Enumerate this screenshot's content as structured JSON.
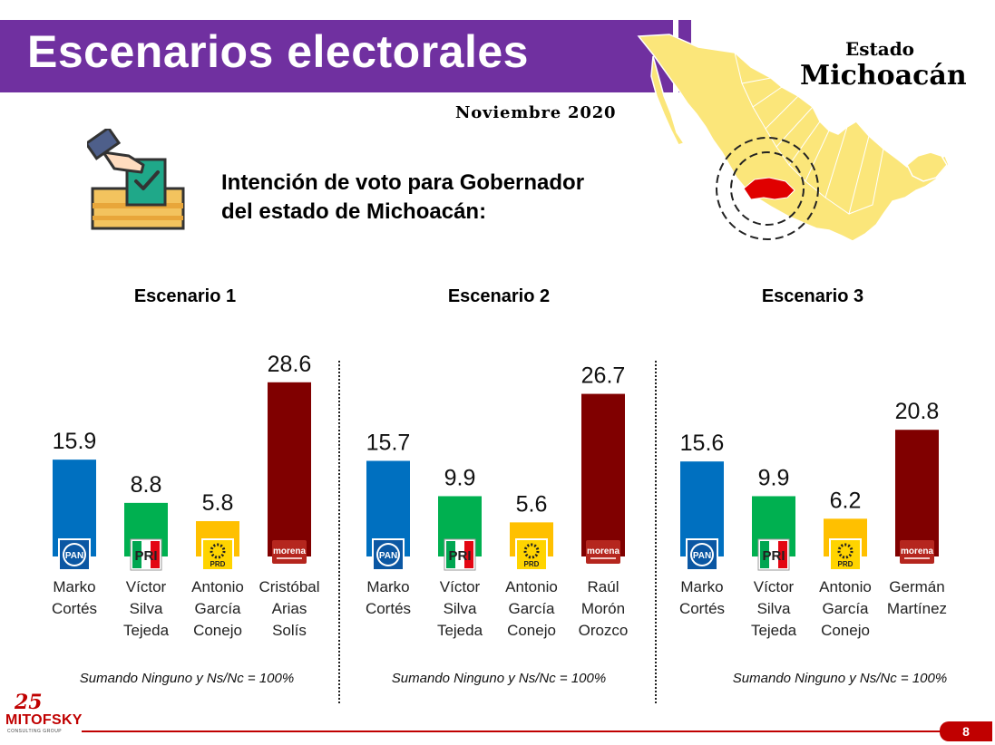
{
  "header": {
    "title": "Escenarios electorales",
    "date": "Noviembre 2020",
    "state_label": "Estado",
    "state_name": "Michoacán"
  },
  "question": {
    "line1": "Intención de voto para Gobernador",
    "line2": "del estado de Michoacán:"
  },
  "colors": {
    "purple": "#7030a0",
    "PAN": "#0070c0",
    "PRI": "#00b050",
    "PRD": "#ffc000",
    "MORENA": "#800000",
    "map_fill": "#fbe67a",
    "highlight": "#e00000"
  },
  "chart_data": [
    {
      "type": "bar",
      "title": "Escenario 1",
      "categories": [
        [
          "Marko",
          "Cortés"
        ],
        [
          "Víctor",
          "Silva",
          "Tejeda"
        ],
        [
          "Antonio",
          "García",
          "Conejo"
        ],
        [
          "Cristóbal",
          "Arias",
          "Solís"
        ]
      ],
      "parties": [
        "PAN",
        "PRI",
        "PRD",
        "morena"
      ],
      "values": [
        15.9,
        8.8,
        5.8,
        28.6
      ],
      "note": "Sumando Ninguno y Ns/Nc = 100%"
    },
    {
      "type": "bar",
      "title": "Escenario 2",
      "categories": [
        [
          "Marko",
          "Cortés"
        ],
        [
          "Víctor",
          "Silva",
          "Tejeda"
        ],
        [
          "Antonio",
          "García",
          "Conejo"
        ],
        [
          "Raúl",
          "Morón",
          "Orozco"
        ]
      ],
      "parties": [
        "PAN",
        "PRI",
        "PRD",
        "morena"
      ],
      "values": [
        15.7,
        9.9,
        5.6,
        26.7
      ],
      "note": "Sumando Ninguno y Ns/Nc = 100%"
    },
    {
      "type": "bar",
      "title": "Escenario 3",
      "categories": [
        [
          "Marko",
          "Cortés"
        ],
        [
          "Víctor",
          "Silva",
          "Tejeda"
        ],
        [
          "Antonio",
          "García",
          "Conejo"
        ],
        [
          "Germán",
          "Martínez"
        ]
      ],
      "parties": [
        "PAN",
        "PRI",
        "PRD",
        "morena"
      ],
      "values": [
        15.6,
        9.9,
        6.2,
        20.8
      ],
      "note": "Sumando Ninguno y Ns/Nc = 100%"
    }
  ],
  "footer": {
    "logo_number": "25",
    "logo_name": "MITOFSKY",
    "logo_tagline": "CONSULTING GROUP",
    "page": "8"
  }
}
